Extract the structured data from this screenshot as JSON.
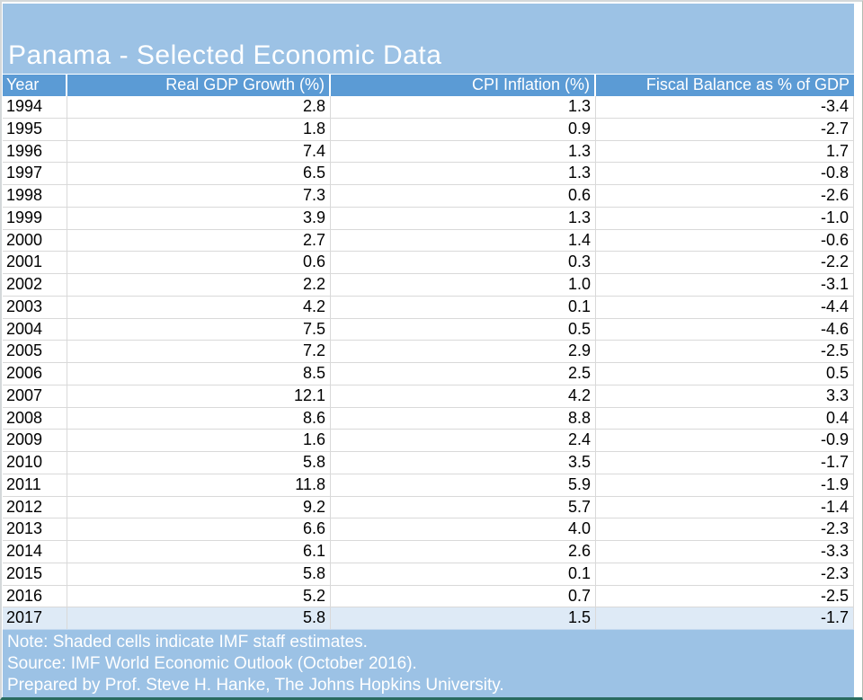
{
  "title": "Panama - Selected Economic Data",
  "chart_data": {
    "type": "table",
    "title": "Panama - Selected Economic Data",
    "columns": [
      "Year",
      "Real GDP Growth (%)",
      "CPI Inflation (%)",
      "Fiscal Balance as % of GDP"
    ],
    "rows": [
      [
        "1994",
        "2.8",
        "1.3",
        "-3.4"
      ],
      [
        "1995",
        "1.8",
        "0.9",
        "-2.7"
      ],
      [
        "1996",
        "7.4",
        "1.3",
        "1.7"
      ],
      [
        "1997",
        "6.5",
        "1.3",
        "-0.8"
      ],
      [
        "1998",
        "7.3",
        "0.6",
        "-2.6"
      ],
      [
        "1999",
        "3.9",
        "1.3",
        "-1.0"
      ],
      [
        "2000",
        "2.7",
        "1.4",
        "-0.6"
      ],
      [
        "2001",
        "0.6",
        "0.3",
        "-2.2"
      ],
      [
        "2002",
        "2.2",
        "1.0",
        "-3.1"
      ],
      [
        "2003",
        "4.2",
        "0.1",
        "-4.4"
      ],
      [
        "2004",
        "7.5",
        "0.5",
        "-4.6"
      ],
      [
        "2005",
        "7.2",
        "2.9",
        "-2.5"
      ],
      [
        "2006",
        "8.5",
        "2.5",
        "0.5"
      ],
      [
        "2007",
        "12.1",
        "4.2",
        "3.3"
      ],
      [
        "2008",
        "8.6",
        "8.8",
        "0.4"
      ],
      [
        "2009",
        "1.6",
        "2.4",
        "-0.9"
      ],
      [
        "2010",
        "5.8",
        "3.5",
        "-1.7"
      ],
      [
        "2011",
        "11.8",
        "5.9",
        "-1.9"
      ],
      [
        "2012",
        "9.2",
        "5.7",
        "-1.4"
      ],
      [
        "2013",
        "6.6",
        "4.0",
        "-2.3"
      ],
      [
        "2014",
        "6.1",
        "2.6",
        "-3.3"
      ],
      [
        "2015",
        "5.8",
        "0.1",
        "-2.3"
      ],
      [
        "2016",
        "5.2",
        "0.7",
        "-2.5"
      ],
      [
        "2017",
        "5.8",
        "1.5",
        "-1.7"
      ]
    ],
    "shaded_estimate_rows": [
      "2017"
    ]
  },
  "footer": {
    "note": "Note: Shaded cells indicate IMF staff estimates.",
    "source": "Source: IMF World Economic Outlook (October 2016).",
    "prepared": "Prepared by Prof. Steve H. Hanke, The Johns Hopkins University."
  },
  "colors": {
    "title_band": "#9cc2e5",
    "header_row": "#5b9bd5",
    "estimate_row_shading": "#deeaf6",
    "gridline": "#d9d9d9",
    "header_text": "#ffffff",
    "data_text": "#000000",
    "bottom_edge": "#2a6b60"
  }
}
